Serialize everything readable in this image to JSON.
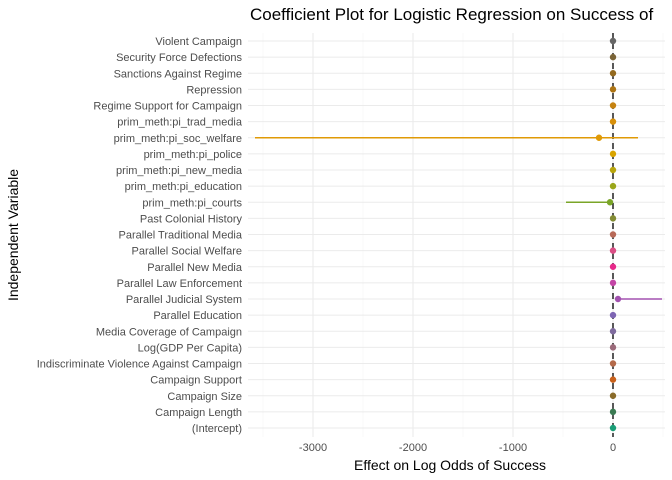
{
  "chart_data": {
    "type": "scatter",
    "subtype": "coefficient-plot",
    "title": "Coefficient Plot for Logistic Regression on Success of",
    "xlabel": "Effect on Log Odds of Success",
    "ylabel": "Independent Variable",
    "xlim": [
      -3650,
      520
    ],
    "x_ticks": [
      {
        "value": -3000,
        "label": "-3000"
      },
      {
        "value": -2000,
        "label": "-2000"
      },
      {
        "value": -1000,
        "label": "-1000"
      },
      {
        "value": 0,
        "label": "0"
      }
    ],
    "grid": true,
    "legend": "none",
    "reference_line": {
      "x": 0,
      "style": "dashed"
    },
    "series": [
      {
        "term": "Violent Campaign",
        "estimate": 0,
        "low": -5,
        "high": 5,
        "color": "#666666"
      },
      {
        "term": "Security Force Defections",
        "estimate": 0,
        "low": -5,
        "high": 5,
        "color": "#7a6437"
      },
      {
        "term": "Sanctions Against Regime",
        "estimate": 0,
        "low": -5,
        "high": 5,
        "color": "#946a1f"
      },
      {
        "term": "Repression",
        "estimate": 0,
        "low": -5,
        "high": 5,
        "color": "#ad7414"
      },
      {
        "term": "Regime Support for Campaign",
        "estimate": 0,
        "low": -5,
        "high": 5,
        "color": "#c58210"
      },
      {
        "term": "prim_meth:pi_trad_media",
        "estimate": 0,
        "low": -5,
        "high": 5,
        "color": "#d8900a"
      },
      {
        "term": "prim_meth:pi_soc_welfare",
        "estimate": -140,
        "low": -3580,
        "high": 250,
        "color": "#e09a06"
      },
      {
        "term": "prim_meth:pi_police",
        "estimate": 0,
        "low": -5,
        "high": 5,
        "color": "#d9a400"
      },
      {
        "term": "prim_meth:pi_new_media",
        "estimate": 0,
        "low": -5,
        "high": 5,
        "color": "#b9a60c"
      },
      {
        "term": "prim_meth:pi_education",
        "estimate": 0,
        "low": -5,
        "high": 5,
        "color": "#9aa61a"
      },
      {
        "term": "prim_meth:pi_courts",
        "estimate": -30,
        "low": -470,
        "high": 0,
        "color": "#7aa528"
      },
      {
        "term": "Past Colonial History",
        "estimate": 0,
        "low": -5,
        "high": 5,
        "color": "#838c34"
      },
      {
        "term": "Parallel Traditional Media",
        "estimate": 0,
        "low": -5,
        "high": 5,
        "color": "#b86a58"
      },
      {
        "term": "Parallel Social Welfare",
        "estimate": 0,
        "low": -5,
        "high": 5,
        "color": "#db4f86"
      },
      {
        "term": "Parallel New Media",
        "estimate": 0,
        "low": -5,
        "high": 5,
        "color": "#e7298a"
      },
      {
        "term": "Parallel Law Enforcement",
        "estimate": 0,
        "low": -5,
        "high": 5,
        "color": "#c346a6"
      },
      {
        "term": "Parallel Judicial System",
        "estimate": 50,
        "low": 20,
        "high": 490,
        "color": "#a352b0"
      },
      {
        "term": "Parallel Education",
        "estimate": 0,
        "low": -5,
        "high": 5,
        "color": "#7e65b3"
      },
      {
        "term": "Media Coverage of Campaign",
        "estimate": 0,
        "low": -5,
        "high": 5,
        "color": "#7f6b9e"
      },
      {
        "term": "Log(GDP Per Capita)",
        "estimate": 0,
        "low": -5,
        "high": 5,
        "color": "#9b6a7a"
      },
      {
        "term": "Indiscriminate Violence Against Campaign",
        "estimate": 0,
        "low": -5,
        "high": 5,
        "color": "#b46a4a"
      },
      {
        "term": "Campaign Support",
        "estimate": 0,
        "low": -5,
        "high": 5,
        "color": "#c9611b"
      },
      {
        "term": "Campaign Size",
        "estimate": 0,
        "low": -5,
        "high": 5,
        "color": "#8a6b2a"
      },
      {
        "term": "Campaign Length",
        "estimate": 0,
        "low": -5,
        "high": 5,
        "color": "#3b7a52"
      },
      {
        "term": "(Intercept)",
        "estimate": 0,
        "low": -5,
        "high": 5,
        "color": "#1b9e77"
      }
    ]
  }
}
